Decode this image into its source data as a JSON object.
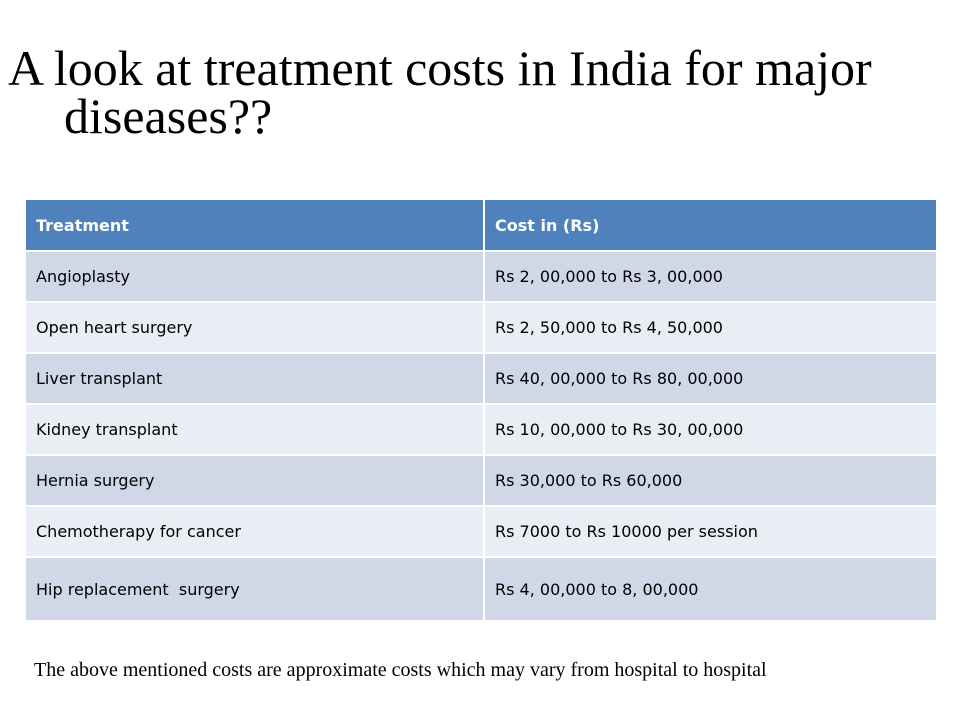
{
  "slide": {
    "title": "A look at treatment costs in India for major diseases??",
    "footnote": "The above mentioned costs are approximate costs which may vary from hospital to hospital"
  },
  "table": {
    "headers": [
      "Treatment",
      "Cost in (Rs)"
    ],
    "rows": [
      [
        "Angioplasty",
        "Rs 2, 00,000 to Rs 3, 00,000"
      ],
      [
        "Open heart surgery",
        "Rs 2, 50,000 to Rs 4, 50,000"
      ],
      [
        "Liver transplant",
        "Rs 40, 00,000 to Rs 80, 00,000"
      ],
      [
        "Kidney transplant",
        "Rs 10, 00,000 to Rs 30, 00,000"
      ],
      [
        "Hernia surgery",
        "Rs 30,000 to Rs 60,000"
      ],
      [
        "Chemotherapy for cancer",
        "Rs 7000 to Rs 10000 per session"
      ],
      [
        "Hip replacement  surgery",
        "Rs 4, 00,000 to 8, 00,000"
      ]
    ]
  },
  "colors": {
    "header_bg": "#4f81bd",
    "row_odd_bg": "#d0d8e8",
    "row_even_bg": "#e9edf4"
  }
}
